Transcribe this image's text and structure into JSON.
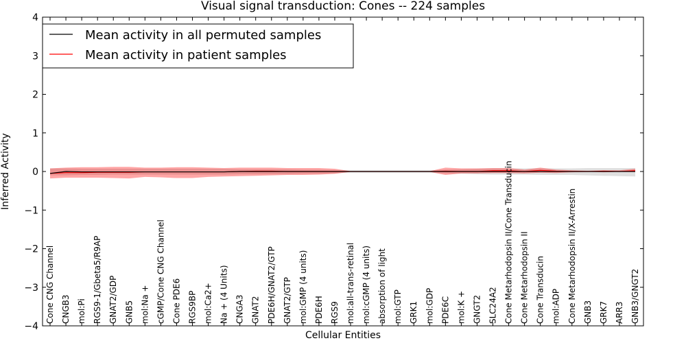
{
  "chart_data": {
    "type": "line",
    "title": "Visual signal transduction: Cones -- 224 samples",
    "xlabel": "Cellular Entities",
    "ylabel": "Inferred Activity",
    "ylim": [
      -4,
      4
    ],
    "yticks": [
      "−4",
      "−3",
      "−2",
      "−1",
      "0",
      "1",
      "2",
      "3",
      "4"
    ],
    "grid": false,
    "legend_position": "top-left",
    "categories": [
      "Cone CNG Channel",
      "CNGB3",
      "mol:Pi",
      "RGS9-1/Gbeta5/R9AP",
      "GNAT2/GDP",
      "GNB5",
      "mol:Na +",
      "cGMP/Cone CNG Channel",
      "Cone PDE6",
      "RGS9BP",
      "mol:Ca2+",
      "Na + (4 Units)",
      "CNGA3",
      "GNAT2",
      "PDE6H/GNAT2/GTP",
      "GNAT2/GTP",
      "mol:GMP (4 units)",
      "PDE6H",
      "RGS9",
      "mol:all-trans-retinal",
      "mol:cGMP (4 units)",
      "absorption of light",
      "mol:GTP",
      "GRK1",
      "mol:GDP",
      "PDE6C",
      "mol:K +",
      "GNGT2",
      "SLC24A2",
      "Cone Metarhodopsin II/Cone Transducin",
      "Cone Metarhodopsin II",
      "Cone Transducin",
      "mol:ADP",
      "Cone Metarhodopsin II/X-Arrestin",
      "GNB3",
      "GRK7",
      "ARR3",
      "GNB3/GNGT2"
    ],
    "series": [
      {
        "name": "Mean activity in all permuted samples",
        "color": "#000000",
        "values": [
          -0.05,
          0.0,
          -0.01,
          -0.01,
          -0.01,
          -0.01,
          -0.01,
          -0.01,
          -0.01,
          -0.01,
          -0.01,
          -0.01,
          0.0,
          0.0,
          0.0,
          0.0,
          0.0,
          0.0,
          0.0,
          0.0,
          0.0,
          0.0,
          0.0,
          0.0,
          0.0,
          0.0,
          0.0,
          0.0,
          0.0,
          0.0,
          0.0,
          0.0,
          0.0,
          0.0,
          0.0,
          0.0,
          0.0,
          0.0
        ],
        "band_lower": [
          -0.1,
          -0.1,
          -0.09,
          -0.09,
          -0.08,
          -0.08,
          -0.08,
          -0.08,
          -0.08,
          -0.08,
          -0.08,
          -0.08,
          -0.07,
          -0.07,
          -0.07,
          -0.07,
          -0.06,
          -0.06,
          -0.05,
          -0.03,
          -0.03,
          -0.03,
          -0.03,
          -0.03,
          -0.03,
          -0.05,
          -0.06,
          -0.07,
          -0.08,
          -0.08,
          -0.08,
          -0.09,
          -0.09,
          -0.09,
          -0.1,
          -0.11,
          -0.12,
          -0.13
        ],
        "band_upper": [
          0.08,
          0.08,
          0.07,
          0.07,
          0.07,
          0.07,
          0.07,
          0.07,
          0.07,
          0.07,
          0.07,
          0.07,
          0.06,
          0.06,
          0.06,
          0.06,
          0.05,
          0.05,
          0.04,
          0.03,
          0.03,
          0.03,
          0.03,
          0.03,
          0.03,
          0.05,
          0.06,
          0.07,
          0.08,
          0.08,
          0.08,
          0.08,
          0.08,
          0.08,
          0.09,
          0.09,
          0.09,
          0.09
        ]
      },
      {
        "name": "Mean activity in patient samples",
        "color": "#ff0000",
        "values": [
          -0.05,
          -0.03,
          -0.03,
          -0.02,
          -0.02,
          -0.02,
          -0.01,
          -0.01,
          -0.01,
          -0.01,
          -0.01,
          -0.01,
          0.0,
          0.01,
          0.01,
          0.0,
          0.0,
          0.0,
          0.0,
          0.0,
          0.0,
          0.0,
          0.0,
          0.0,
          0.0,
          0.01,
          0.0,
          0.0,
          0.02,
          0.02,
          0.0,
          0.03,
          0.01,
          0.0,
          0.0,
          0.01,
          0.0,
          0.02
        ],
        "band_lower": [
          -0.18,
          -0.16,
          -0.16,
          -0.16,
          -0.17,
          -0.18,
          -0.14,
          -0.15,
          -0.17,
          -0.17,
          -0.14,
          -0.13,
          -0.12,
          -0.11,
          -0.1,
          -0.09,
          -0.09,
          -0.08,
          -0.06,
          -0.01,
          -0.01,
          -0.01,
          -0.01,
          -0.01,
          -0.01,
          -0.09,
          -0.05,
          -0.05,
          -0.04,
          -0.04,
          -0.05,
          -0.03,
          -0.04,
          -0.02,
          -0.01,
          -0.02,
          -0.01,
          0.0
        ],
        "band_upper": [
          0.08,
          0.1,
          0.11,
          0.11,
          0.12,
          0.12,
          0.1,
          0.1,
          0.11,
          0.11,
          0.1,
          0.09,
          0.1,
          0.1,
          0.1,
          0.09,
          0.09,
          0.09,
          0.07,
          0.01,
          0.01,
          0.01,
          0.01,
          0.01,
          0.01,
          0.1,
          0.08,
          0.08,
          0.09,
          0.09,
          0.05,
          0.1,
          0.05,
          0.03,
          0.02,
          0.03,
          0.03,
          0.07
        ]
      }
    ]
  }
}
